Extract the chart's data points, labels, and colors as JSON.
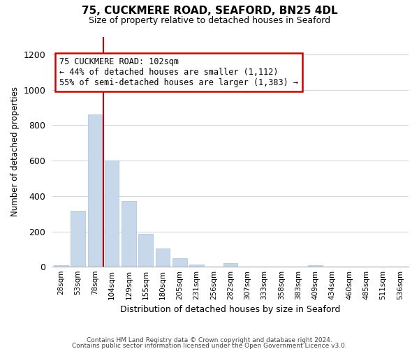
{
  "title": "75, CUCKMERE ROAD, SEAFORD, BN25 4DL",
  "subtitle": "Size of property relative to detached houses in Seaford",
  "xlabel": "Distribution of detached houses by size in Seaford",
  "ylabel": "Number of detached properties",
  "bar_color": "#c8d8eb",
  "bar_edge_color": "#b0c8e0",
  "bin_labels": [
    "28sqm",
    "53sqm",
    "78sqm",
    "104sqm",
    "129sqm",
    "155sqm",
    "180sqm",
    "205sqm",
    "231sqm",
    "256sqm",
    "282sqm",
    "307sqm",
    "333sqm",
    "358sqm",
    "383sqm",
    "409sqm",
    "434sqm",
    "460sqm",
    "485sqm",
    "511sqm",
    "536sqm"
  ],
  "bar_heights": [
    10,
    315,
    860,
    600,
    370,
    185,
    105,
    47,
    15,
    0,
    20,
    0,
    0,
    0,
    0,
    10,
    0,
    0,
    0,
    0,
    0
  ],
  "vline_color": "#cc0000",
  "ylim": [
    0,
    1300
  ],
  "yticks": [
    0,
    200,
    400,
    600,
    800,
    1000,
    1200
  ],
  "annotation_text": "75 CUCKMERE ROAD: 102sqm\n← 44% of detached houses are smaller (1,112)\n55% of semi-detached houses are larger (1,383) →",
  "annotation_box_edgecolor": "#cc0000",
  "annotation_box_facecolor": "#ffffff",
  "footer_line1": "Contains HM Land Registry data © Crown copyright and database right 2024.",
  "footer_line2": "Contains public sector information licensed under the Open Government Licence v3.0.",
  "background_color": "#ffffff",
  "grid_color": "#d0d8e4"
}
